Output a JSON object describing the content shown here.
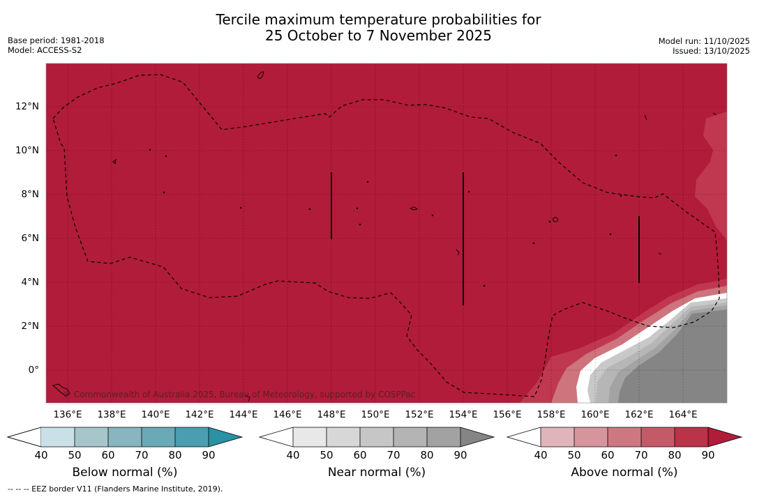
{
  "title": {
    "line1": "Tercile maximum temperature probabilities for",
    "line2": "25 October to 7 November 2025"
  },
  "meta_left": {
    "base_period": "Base period: 1981-2018",
    "model": "Model: ACCESS-S2"
  },
  "meta_right": {
    "model_run": "Model run: 11/10/2025",
    "issued": "Issued: 13/10/2025"
  },
  "map": {
    "copyright": "© Commonwealth of Australia 2025, Bureau of Meteorology, supported by COSPPac",
    "lat_labels": [
      "12°N",
      "10°N",
      "8°N",
      "6°N",
      "4°N",
      "2°N",
      "0°"
    ],
    "lon_labels": [
      "136°E",
      "138°E",
      "140°E",
      "142°E",
      "144°E",
      "146°E",
      "148°E",
      "150°E",
      "152°E",
      "154°E",
      "156°E",
      "158°E",
      "160°E",
      "162°E",
      "164°E"
    ],
    "colors": {
      "above_max": "#b11c3a",
      "near_max": "#858585",
      "near_high": "#a3a3a3",
      "near_mid": "#b6b6b6",
      "near_low": "#c8c8c8",
      "above_70": "#cd747d",
      "above_80": "#c0384f",
      "above_high": "#bc2e48"
    }
  },
  "legends": [
    {
      "name": "Below normal (%)",
      "ticks": [
        "40",
        "50",
        "60",
        "70",
        "80",
        "90"
      ],
      "colors": [
        "#c9e1e6",
        "#a6c6cc",
        "#88b5bf",
        "#6aa9b6",
        "#4a9eaf",
        "#2b91a4"
      ]
    },
    {
      "name": "Near normal (%)",
      "ticks": [
        "40",
        "50",
        "60",
        "70",
        "80",
        "90"
      ],
      "colors": [
        "#e8e8e8",
        "#d7d7d7",
        "#c6c6c6",
        "#b4b4b4",
        "#a2a2a2",
        "#858585"
      ]
    },
    {
      "name": "Above normal (%)",
      "ticks": [
        "40",
        "50",
        "60",
        "70",
        "80",
        "90"
      ],
      "colors": [
        "#e0b4bb",
        "#d6959d",
        "#cd7880",
        "#c45a68",
        "#b93349",
        "#b11c3a"
      ]
    }
  ],
  "footnote": "--  --  -- EEZ border V11 (Flanders Marine Institute, 2019)."
}
